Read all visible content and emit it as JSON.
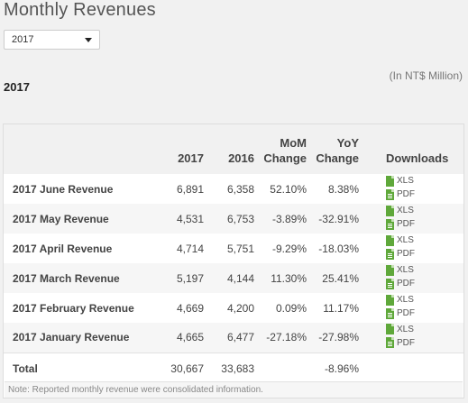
{
  "page": {
    "title": "Monthly Revenues",
    "selected_year": "2017",
    "unit_note": "(In NT$ Million)",
    "section_year": "2017",
    "footnote": "Note: Reported monthly revenue were consolidated information."
  },
  "table": {
    "headers": {
      "col_2017": "2017",
      "col_2016": "2016",
      "mom_line1": "MoM",
      "mom_line2": "Change",
      "yoy_line1": "YoY",
      "yoy_line2": "Change",
      "downloads": "Downloads"
    },
    "xls_label": "XLS",
    "pdf_label": "PDF",
    "rows": [
      {
        "label": "2017 June Revenue",
        "v2017": "6,891",
        "v2016": "6,358",
        "mom": "52.10%",
        "yoy": "8.38%"
      },
      {
        "label": "2017 May Revenue",
        "v2017": "4,531",
        "v2016": "6,753",
        "mom": "-3.89%",
        "yoy": "-32.91%"
      },
      {
        "label": "2017 April Revenue",
        "v2017": "4,714",
        "v2016": "5,751",
        "mom": "-9.29%",
        "yoy": "-18.03%"
      },
      {
        "label": "2017 March Revenue",
        "v2017": "5,197",
        "v2016": "4,144",
        "mom": "11.30%",
        "yoy": "25.41%"
      },
      {
        "label": "2017 February Revenue",
        "v2017": "4,669",
        "v2016": "4,200",
        "mom": "0.09%",
        "yoy": "11.17%"
      },
      {
        "label": "2017 January Revenue",
        "v2017": "4,665",
        "v2016": "6,477",
        "mom": "-27.18%",
        "yoy": "-27.98%"
      }
    ],
    "total": {
      "label": "Total",
      "v2017": "30,667",
      "v2016": "33,683",
      "mom": "",
      "yoy": "-8.96%"
    }
  },
  "colors": {
    "file_icon": "#5fa83a",
    "background": "#f1f1f1"
  },
  "icons": {
    "xls": "spreadsheet-file-icon",
    "pdf": "pdf-file-icon",
    "select": "chevron-down-icon"
  }
}
